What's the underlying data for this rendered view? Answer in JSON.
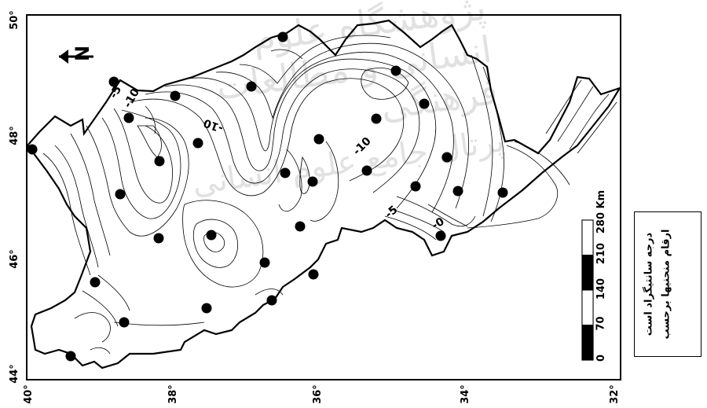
{
  "map": {
    "north_label": "N",
    "contour_labels": [
      "-5",
      "-10",
      "-10",
      "-10",
      "-5",
      "-0"
    ],
    "x_ticks": [
      "40°",
      "38°",
      "36°",
      "34°",
      "32°"
    ],
    "y_ticks": [
      "50°",
      "48°",
      "46°",
      "44°"
    ],
    "station_count": 31
  },
  "scale_bar": {
    "unit": "Km",
    "labels": [
      "0",
      "70",
      "140",
      "210",
      "280 Km"
    ]
  },
  "legend": {
    "line1": "ارقام منحنيها برحسب",
    "line2": "درجه سانتیگراد است"
  },
  "watermark": {
    "line1": "پژوهشگاه علوم انسانی و مطالعات فرهنگی",
    "line2": "پرتال جامع علوم انسانی"
  },
  "colors": {
    "ink": "#000000",
    "paper": "#ffffff",
    "watermark": "#c9c9c9"
  }
}
